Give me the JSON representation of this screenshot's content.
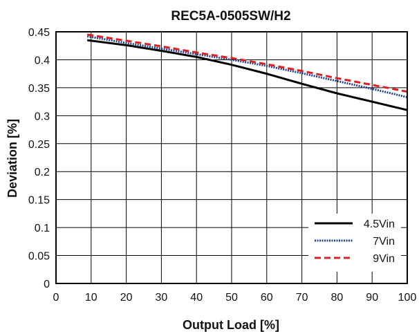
{
  "chart_data": {
    "type": "line",
    "title": "REC5A-0505SW/H2",
    "xlabel": "Output Load [%]",
    "ylabel": "Deviation [%]",
    "xlim": [
      0,
      100
    ],
    "ylim": [
      0,
      0.45
    ],
    "x_ticks": [
      "0",
      "10",
      "20",
      "30",
      "40",
      "50",
      "60",
      "70",
      "80",
      "90",
      "100"
    ],
    "y_ticks": [
      "0",
      "0.05",
      "0.1",
      "0.15",
      "0.2",
      "0.25",
      "0.3",
      "0.35",
      "0.4",
      "0.45"
    ],
    "grid": true,
    "legend_position": "bottom-right",
    "series": [
      {
        "name": "4.5Vin",
        "color": "#000000",
        "style": "solid",
        "x": [
          8.9,
          20,
          30,
          40,
          50,
          60,
          70,
          80,
          90,
          100
        ],
        "y": [
          0.435,
          0.426,
          0.416,
          0.405,
          0.391,
          0.375,
          0.357,
          0.34,
          0.325,
          0.31
        ]
      },
      {
        "name": "7Vin",
        "color": "#1f3f8f",
        "style": "dotted",
        "x": [
          8.9,
          20,
          30,
          40,
          50,
          60,
          70,
          80,
          90,
          100
        ],
        "y": [
          0.442,
          0.43,
          0.42,
          0.41,
          0.4,
          0.389,
          0.376,
          0.362,
          0.348,
          0.333
        ]
      },
      {
        "name": "9Vin",
        "color": "#e02020",
        "style": "dashed",
        "x": [
          8.9,
          20,
          30,
          40,
          50,
          60,
          70,
          80,
          90,
          100
        ],
        "y": [
          0.445,
          0.434,
          0.424,
          0.413,
          0.403,
          0.392,
          0.38,
          0.367,
          0.355,
          0.343
        ]
      }
    ]
  }
}
